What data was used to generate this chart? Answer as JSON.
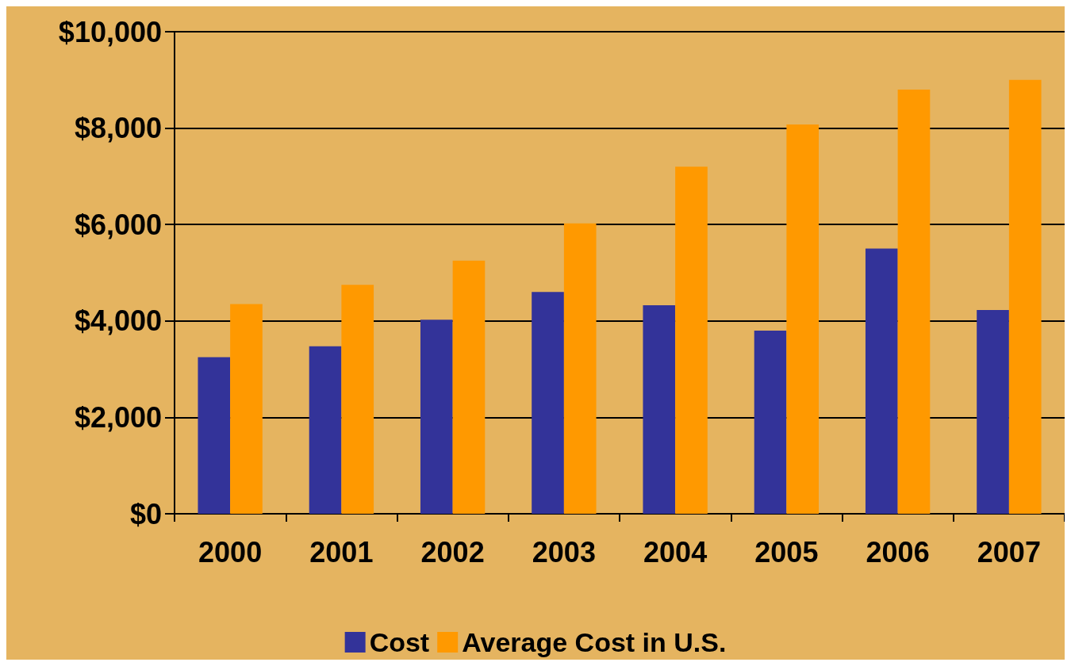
{
  "chart_data": {
    "type": "bar",
    "categories": [
      "2000",
      "2001",
      "2002",
      "2003",
      "2004",
      "2005",
      "2006",
      "2007"
    ],
    "series": [
      {
        "name": "Cost",
        "color": "#333399",
        "values": [
          3250,
          3475,
          4025,
          4600,
          4325,
          3800,
          5500,
          4225
        ]
      },
      {
        "name": "Average Cost in U.S.",
        "color": "#ff9900",
        "values": [
          4350,
          4750,
          5250,
          6025,
          7200,
          8075,
          8800,
          9000
        ]
      }
    ],
    "ylim": [
      0,
      10000
    ],
    "yticks": [
      {
        "value": 0,
        "label": "$0"
      },
      {
        "value": 2000,
        "label": "$2,000"
      },
      {
        "value": 4000,
        "label": "$4,000"
      },
      {
        "value": 6000,
        "label": "$6,000"
      },
      {
        "value": 8000,
        "label": "$8,000"
      },
      {
        "value": 10000,
        "label": "$10,000"
      }
    ],
    "grid": "y",
    "legend": "bottom"
  }
}
